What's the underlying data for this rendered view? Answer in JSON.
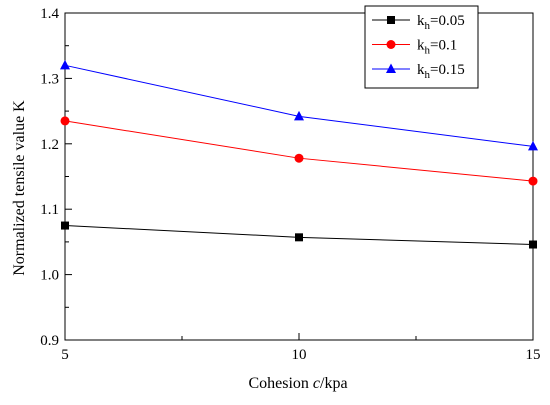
{
  "chart_data": {
    "type": "line",
    "title": "",
    "xlabel_parts": [
      {
        "text": "Cohesion ",
        "italic": false
      },
      {
        "text": "c",
        "italic": true
      },
      {
        "text": "/kpa",
        "italic": false
      }
    ],
    "ylabel": "Normalized tensile value K",
    "x": [
      5,
      10,
      15
    ],
    "xlim": [
      5,
      15
    ],
    "ylim": [
      0.9,
      1.4
    ],
    "x_ticks": [
      5,
      10,
      15
    ],
    "x_tick_labels": [
      "5",
      "10",
      "15"
    ],
    "y_ticks": [
      0.9,
      1.0,
      1.1,
      1.2,
      1.3,
      1.4
    ],
    "y_tick_labels": [
      "0.9",
      "1.0",
      "1.1",
      "1.2",
      "1.3",
      "1.4"
    ],
    "grid": false,
    "legend_position": "top-right",
    "series": [
      {
        "legend_base": "k",
        "legend_sub": "h",
        "legend_value": "=0.05",
        "values": [
          1.075,
          1.057,
          1.046
        ],
        "color": "#000000",
        "marker": "square"
      },
      {
        "legend_base": "k",
        "legend_sub": "h",
        "legend_value": "=0.1",
        "values": [
          1.235,
          1.178,
          1.143
        ],
        "color": "#ff0000",
        "marker": "circle"
      },
      {
        "legend_base": "k",
        "legend_sub": "h",
        "legend_value": "=0.15",
        "values": [
          1.32,
          1.242,
          1.196
        ],
        "color": "#0000ff",
        "marker": "triangle"
      }
    ]
  }
}
